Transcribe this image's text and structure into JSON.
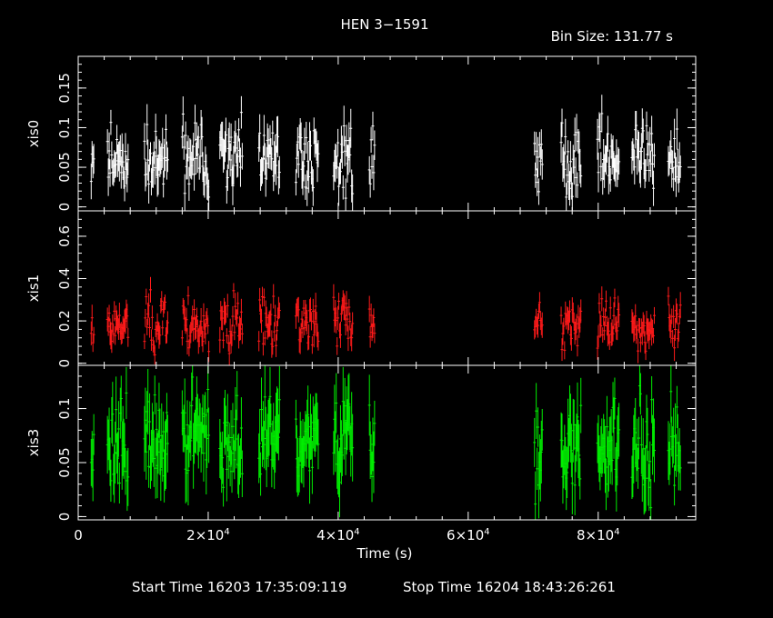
{
  "chart_data": {
    "type": "line",
    "title": "HEN 3−1591",
    "bin_size_label": "Bin Size: 131.77 s",
    "xlabel": "Time (s)",
    "xlim": [
      0,
      95000
    ],
    "x_ticks": [
      {
        "value": 0,
        "mantissa": "0",
        "exponent": ""
      },
      {
        "value": 20000,
        "mantissa": "2×10",
        "exponent": "4"
      },
      {
        "value": 40000,
        "mantissa": "4×10",
        "exponent": "4"
      },
      {
        "value": 60000,
        "mantissa": "6×10",
        "exponent": "4"
      },
      {
        "value": 80000,
        "mantissa": "8×10",
        "exponent": "4"
      }
    ],
    "start_time_label": "Start Time 16203 17:35:09:119",
    "stop_time_label": "Stop Time 16204 18:43:26:261",
    "gti": [
      [
        2000,
        2500
      ],
      [
        4500,
        7800
      ],
      [
        10200,
        13800
      ],
      [
        16000,
        20200
      ],
      [
        21800,
        25300
      ],
      [
        27800,
        31000
      ],
      [
        33500,
        37000
      ],
      [
        39300,
        42300
      ],
      [
        44800,
        45600
      ],
      [
        70200,
        71400
      ],
      [
        74300,
        77400
      ],
      [
        79900,
        83300
      ],
      [
        85200,
        88700
      ],
      [
        90800,
        92700
      ]
    ],
    "panels": [
      {
        "ylabel": "xis0",
        "color": "#ffffff",
        "ylim": [
          -0.005,
          0.19
        ],
        "y_ticks": [
          {
            "value": 0,
            "label": "0"
          },
          {
            "value": 0.05,
            "label": "0.05"
          },
          {
            "value": 0.1,
            "label": "0.1"
          },
          {
            "value": 0.15,
            "label": "0.15"
          }
        ],
        "base_rate": 0.06,
        "spread": 0.022,
        "err": 0.02,
        "seed": 11
      },
      {
        "ylabel": "xis1",
        "color": "#ff1a1a",
        "ylim": [
          -0.01,
          0.72
        ],
        "y_ticks": [
          {
            "value": 0,
            "label": "0"
          },
          {
            "value": 0.2,
            "label": "0.2"
          },
          {
            "value": 0.4,
            "label": "0.4"
          },
          {
            "value": 0.6,
            "label": "0.6"
          }
        ],
        "base_rate": 0.18,
        "spread": 0.06,
        "err": 0.05,
        "seed": 23
      },
      {
        "ylabel": "xis3",
        "color": "#00ee00",
        "ylim": [
          -0.003,
          0.14
        ],
        "y_ticks": [
          {
            "value": 0,
            "label": "0"
          },
          {
            "value": 0.05,
            "label": "0.05"
          },
          {
            "value": 0.1,
            "label": "0.1"
          }
        ],
        "base_rate": 0.068,
        "spread": 0.022,
        "err": 0.025,
        "seed": 37
      }
    ]
  }
}
